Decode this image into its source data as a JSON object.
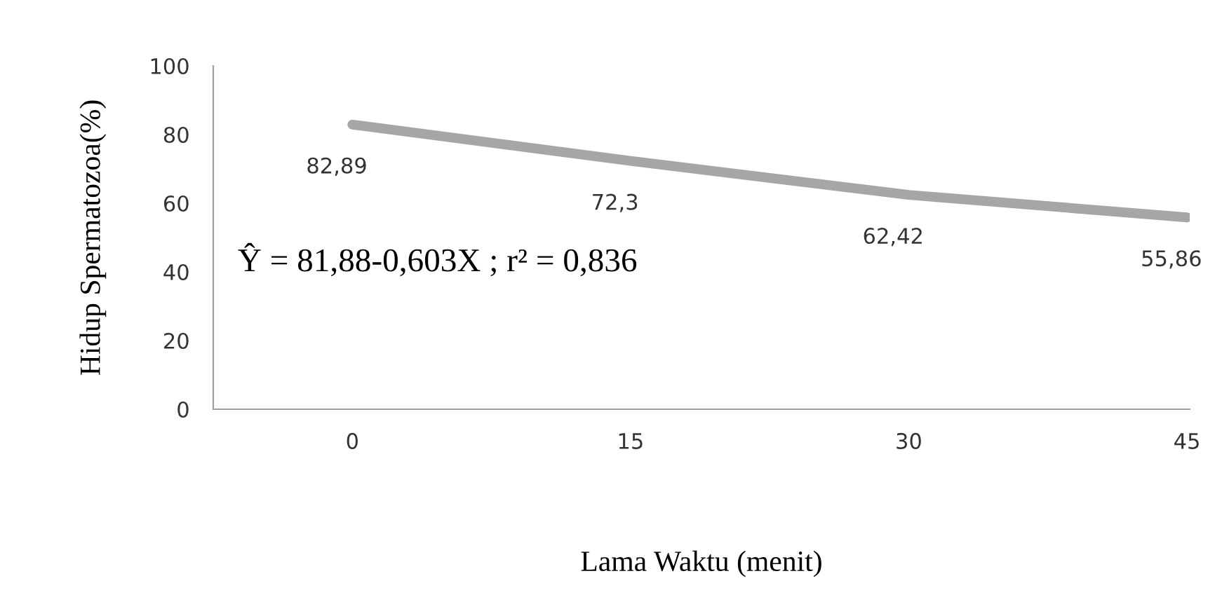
{
  "chart_data": {
    "type": "line",
    "xlabel": "Lama Waktu (menit)",
    "ylabel": "Hidup Spermatozoa(%)",
    "categories": [
      "0",
      "15",
      "30",
      "45"
    ],
    "series": [
      {
        "color": "#a6a6a6",
        "values": [
          82.89,
          72.3,
          62.42,
          55.86
        ],
        "value_labels": [
          "82,89",
          "72,3",
          "62,42",
          "55,86"
        ]
      }
    ],
    "ylim": [
      0,
      100
    ],
    "yticks": [
      0,
      20,
      40,
      60,
      80,
      100
    ],
    "grid": false,
    "marker": "none",
    "line_style": "solid",
    "annotations": [
      "Ŷ = 81,88-0,603X ; r² = 0,836"
    ]
  }
}
